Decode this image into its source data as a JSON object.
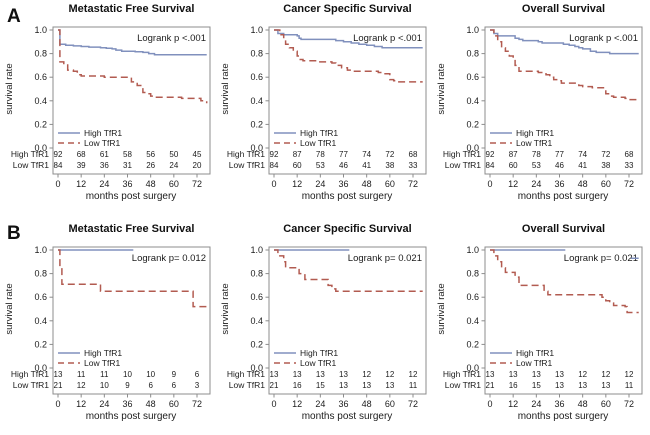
{
  "figure": {
    "row_labels": [
      "A",
      "B"
    ],
    "background": "#ffffff"
  },
  "style": {
    "high_color": "#8090bd",
    "low_color": "#b25b50",
    "frame_color": "#8c8c8c",
    "text_color": "#1c1c1c"
  },
  "chart_data": [
    {
      "type": "line",
      "subtype": "kaplan-meier-step",
      "title": "Metastatic Free Survival",
      "annotation": "Logrank p <.001",
      "xlabel": "months post surgery",
      "ylabel": "survival rate",
      "xlim": [
        0,
        78
      ],
      "ylim": [
        0.0,
        1.0
      ],
      "x_ticks": [
        0,
        12,
        24,
        36,
        48,
        60,
        72
      ],
      "y_ticks": [
        "1.0",
        "0.8",
        "0.6",
        "0.4",
        "0.2",
        "0.0"
      ],
      "grid": false,
      "legend_position": "bottom-left-inside",
      "series": [
        {
          "name": "High TfR1",
          "line": "solid",
          "color": "#8090bd",
          "points": [
            [
              0,
              1.0
            ],
            [
              1,
              0.88
            ],
            [
              4,
              0.87
            ],
            [
              8,
              0.865
            ],
            [
              12,
              0.86
            ],
            [
              16,
              0.855
            ],
            [
              22,
              0.85
            ],
            [
              25,
              0.845
            ],
            [
              28,
              0.84
            ],
            [
              30,
              0.83
            ],
            [
              33,
              0.82
            ],
            [
              40,
              0.815
            ],
            [
              44,
              0.81
            ],
            [
              47,
              0.8
            ],
            [
              50,
              0.79
            ],
            [
              77,
              0.79
            ]
          ]
        },
        {
          "name": "Low TfR1",
          "line": "dashed",
          "color": "#b25b50",
          "points": [
            [
              0,
              1.0
            ],
            [
              1,
              0.73
            ],
            [
              3,
              0.71
            ],
            [
              5,
              0.66
            ],
            [
              8,
              0.65
            ],
            [
              10,
              0.62
            ],
            [
              12,
              0.61
            ],
            [
              24,
              0.6
            ],
            [
              36,
              0.6
            ],
            [
              38,
              0.56
            ],
            [
              41,
              0.53
            ],
            [
              44,
              0.47
            ],
            [
              46,
              0.46
            ],
            [
              48,
              0.44
            ],
            [
              50,
              0.43
            ],
            [
              64,
              0.42
            ],
            [
              74,
              0.4
            ],
            [
              77,
              0.38
            ]
          ]
        }
      ],
      "at_risk": {
        "rows": [
          {
            "label": "High TfR1",
            "values": [
              92,
              68,
              61,
              58,
              56,
              50,
              45
            ]
          },
          {
            "label": "Low TfR1",
            "values": [
              84,
              39,
              36,
              31,
              26,
              24,
              20
            ]
          }
        ]
      }
    },
    {
      "type": "line",
      "subtype": "kaplan-meier-step",
      "title": "Cancer Specific Survival",
      "annotation": "Logrank p <.001",
      "xlabel": "months post surgery",
      "ylabel": "survival rate",
      "xlim": [
        0,
        78
      ],
      "ylim": [
        0.0,
        1.0
      ],
      "x_ticks": [
        0,
        12,
        24,
        36,
        48,
        60,
        72
      ],
      "y_ticks": [
        "1.0",
        "0.8",
        "0.6",
        "0.4",
        "0.2",
        "0.0"
      ],
      "grid": false,
      "legend_position": "bottom-left-inside",
      "series": [
        {
          "name": "High TfR1",
          "line": "solid",
          "color": "#8090bd",
          "points": [
            [
              0,
              1.0
            ],
            [
              2,
              0.97
            ],
            [
              5,
              0.96
            ],
            [
              12,
              0.95
            ],
            [
              13,
              0.93
            ],
            [
              14,
              0.92
            ],
            [
              30,
              0.92
            ],
            [
              32,
              0.91
            ],
            [
              36,
              0.9
            ],
            [
              40,
              0.89
            ],
            [
              44,
              0.88
            ],
            [
              48,
              0.87
            ],
            [
              52,
              0.86
            ],
            [
              56,
              0.85
            ],
            [
              77,
              0.85
            ]
          ]
        },
        {
          "name": "Low TfR1",
          "line": "dashed",
          "color": "#b25b50",
          "points": [
            [
              0,
              1.0
            ],
            [
              3,
              0.96
            ],
            [
              5,
              0.92
            ],
            [
              6,
              0.88
            ],
            [
              8,
              0.85
            ],
            [
              10,
              0.82
            ],
            [
              12,
              0.78
            ],
            [
              13,
              0.75
            ],
            [
              15,
              0.74
            ],
            [
              22,
              0.73
            ],
            [
              30,
              0.72
            ],
            [
              32,
              0.7
            ],
            [
              35,
              0.68
            ],
            [
              38,
              0.66
            ],
            [
              40,
              0.65
            ],
            [
              52,
              0.65
            ],
            [
              54,
              0.64
            ],
            [
              56,
              0.63
            ],
            [
              60,
              0.58
            ],
            [
              62,
              0.57
            ],
            [
              64,
              0.56
            ],
            [
              77,
              0.56
            ]
          ]
        }
      ],
      "at_risk": {
        "rows": [
          {
            "label": "High TfR1",
            "values": [
              92,
              87,
              78,
              77,
              74,
              72,
              68
            ]
          },
          {
            "label": "Low TfR1",
            "values": [
              84,
              60,
              53,
              46,
              41,
              38,
              33
            ]
          }
        ]
      }
    },
    {
      "type": "line",
      "subtype": "kaplan-meier-step",
      "title": "Overall Survival",
      "annotation": "Logrank p <.001",
      "xlabel": "months post surgery",
      "ylabel": "survival rate",
      "xlim": [
        0,
        78
      ],
      "ylim": [
        0.0,
        1.0
      ],
      "x_ticks": [
        0,
        12,
        24,
        36,
        48,
        60,
        72
      ],
      "y_ticks": [
        "1.0",
        "0.8",
        "0.6",
        "0.4",
        "0.2",
        "0.0"
      ],
      "grid": false,
      "legend_position": "bottom-left-inside",
      "series": [
        {
          "name": "High TfR1",
          "line": "solid",
          "color": "#8090bd",
          "points": [
            [
              0,
              1.0
            ],
            [
              2,
              0.97
            ],
            [
              4,
              0.95
            ],
            [
              12,
              0.95
            ],
            [
              13,
              0.93
            ],
            [
              15,
              0.92
            ],
            [
              17,
              0.91
            ],
            [
              25,
              0.9
            ],
            [
              27,
              0.89
            ],
            [
              36,
              0.89
            ],
            [
              38,
              0.88
            ],
            [
              41,
              0.87
            ],
            [
              44,
              0.86
            ],
            [
              46,
              0.85
            ],
            [
              48,
              0.84
            ],
            [
              52,
              0.82
            ],
            [
              55,
              0.81
            ],
            [
              62,
              0.8
            ],
            [
              77,
              0.8
            ]
          ]
        },
        {
          "name": "Low TfR1",
          "line": "dashed",
          "color": "#b25b50",
          "points": [
            [
              0,
              1.0
            ],
            [
              2,
              0.95
            ],
            [
              4,
              0.9
            ],
            [
              6,
              0.85
            ],
            [
              8,
              0.82
            ],
            [
              10,
              0.78
            ],
            [
              12,
              0.75
            ],
            [
              13,
              0.7
            ],
            [
              15,
              0.65
            ],
            [
              23,
              0.65
            ],
            [
              25,
              0.64
            ],
            [
              29,
              0.62
            ],
            [
              31,
              0.6
            ],
            [
              33,
              0.58
            ],
            [
              35,
              0.57
            ],
            [
              37,
              0.55
            ],
            [
              44,
              0.55
            ],
            [
              46,
              0.53
            ],
            [
              48,
              0.52
            ],
            [
              53,
              0.51
            ],
            [
              58,
              0.51
            ],
            [
              60,
              0.46
            ],
            [
              62,
              0.44
            ],
            [
              64,
              0.43
            ],
            [
              69,
              0.43
            ],
            [
              70,
              0.42
            ],
            [
              72,
              0.41
            ],
            [
              77,
              0.41
            ]
          ]
        }
      ],
      "at_risk": {
        "rows": [
          {
            "label": "High TfR1",
            "values": [
              92,
              87,
              78,
              77,
              74,
              72,
              68
            ]
          },
          {
            "label": "Low TfR1",
            "values": [
              84,
              60,
              53,
              46,
              41,
              38,
              33
            ]
          }
        ]
      }
    },
    {
      "type": "line",
      "subtype": "kaplan-meier-step",
      "title": "Metastatic Free Survival",
      "annotation": "Logrank p= 0.012",
      "xlabel": "months post surgery",
      "ylabel": "survival rate",
      "xlim": [
        0,
        78
      ],
      "ylim": [
        0.0,
        1.0
      ],
      "x_ticks": [
        0,
        12,
        24,
        36,
        48,
        60,
        72
      ],
      "y_ticks": [
        "1.0",
        "0.8",
        "0.6",
        "0.4",
        "0.2",
        "0.0"
      ],
      "grid": false,
      "legend_position": "bottom-left-inside",
      "series": [
        {
          "name": "High TfR1",
          "line": "solid",
          "color": "#8090bd",
          "points": [
            [
              0,
              1.0
            ],
            [
              39,
              1.0
            ]
          ]
        },
        {
          "name": "Low TfR1",
          "line": "dashed",
          "color": "#b25b50",
          "points": [
            [
              0,
              1.0
            ],
            [
              1,
              0.86
            ],
            [
              2,
              0.71
            ],
            [
              21,
              0.71
            ],
            [
              22,
              0.65
            ],
            [
              69,
              0.65
            ],
            [
              70,
              0.52
            ],
            [
              77,
              0.52
            ]
          ]
        }
      ],
      "at_risk": {
        "rows": [
          {
            "label": "High TfR1",
            "values": [
              13,
              11,
              11,
              10,
              10,
              9,
              6
            ]
          },
          {
            "label": "Low TfR1",
            "values": [
              21,
              12,
              10,
              9,
              6,
              6,
              3
            ]
          }
        ]
      }
    },
    {
      "type": "line",
      "subtype": "kaplan-meier-step",
      "title": "Cancer Specific Survival",
      "annotation": "Logrank p= 0.021",
      "xlabel": "months post surgery",
      "ylabel": "survival rate",
      "xlim": [
        0,
        78
      ],
      "ylim": [
        0.0,
        1.0
      ],
      "x_ticks": [
        0,
        12,
        24,
        36,
        48,
        60,
        72
      ],
      "y_ticks": [
        "1.0",
        "0.8",
        "0.6",
        "0.4",
        "0.2",
        "0.0"
      ],
      "grid": false,
      "legend_position": "bottom-left-inside",
      "series": [
        {
          "name": "High TfR1",
          "line": "solid",
          "color": "#8090bd",
          "points": [
            [
              0,
              1.0
            ],
            [
              39,
              1.0
            ]
          ]
        },
        {
          "name": "Low TfR1",
          "line": "dashed",
          "color": "#b25b50",
          "points": [
            [
              0,
              1.0
            ],
            [
              2,
              0.95
            ],
            [
              5,
              0.9
            ],
            [
              6,
              0.85
            ],
            [
              12,
              0.85
            ],
            [
              13,
              0.8
            ],
            [
              16,
              0.75
            ],
            [
              27,
              0.75
            ],
            [
              28,
              0.7
            ],
            [
              30,
              0.67
            ],
            [
              32,
              0.65
            ],
            [
              77,
              0.65
            ]
          ]
        }
      ],
      "at_risk": {
        "rows": [
          {
            "label": "High TfR1",
            "values": [
              13,
              13,
              13,
              13,
              12,
              12,
              12
            ]
          },
          {
            "label": "Low TfR1",
            "values": [
              21,
              16,
              15,
              13,
              13,
              13,
              11
            ]
          }
        ]
      }
    },
    {
      "type": "line",
      "subtype": "kaplan-meier-step",
      "title": "Overall Survival",
      "annotation": "Logrank p= 0.021",
      "xlabel": "months post surgery",
      "ylabel": "survival rate",
      "xlim": [
        0,
        78
      ],
      "ylim": [
        0.0,
        1.0
      ],
      "x_ticks": [
        0,
        12,
        24,
        36,
        48,
        60,
        72
      ],
      "y_ticks": [
        "1.0",
        "0.8",
        "0.6",
        "0.4",
        "0.2",
        "0.0"
      ],
      "grid": false,
      "legend_position": "bottom-left-inside",
      "series": [
        {
          "name": "High TfR1",
          "line": "solid",
          "color": "#8090bd",
          "points": [
            [
              0,
              1.0
            ],
            [
              39,
              1.0
            ]
          ]
        },
        {
          "name": "Low TfR1",
          "line": "dashed",
          "color": "#b25b50",
          "points": [
            [
              0,
              1.0
            ],
            [
              2,
              0.95
            ],
            [
              4,
              0.9
            ],
            [
              6,
              0.85
            ],
            [
              8,
              0.81
            ],
            [
              12,
              0.81
            ],
            [
              13,
              0.77
            ],
            [
              15,
              0.7
            ],
            [
              26,
              0.7
            ],
            [
              28,
              0.65
            ],
            [
              30,
              0.62
            ],
            [
              56,
              0.62
            ],
            [
              58,
              0.6
            ],
            [
              60,
              0.57
            ],
            [
              62,
              0.55
            ],
            [
              64,
              0.53
            ],
            [
              69,
              0.53
            ],
            [
              70,
              0.52
            ],
            [
              71,
              0.47
            ],
            [
              77,
              0.47
            ]
          ]
        }
      ],
      "marks": [
        {
          "series": "High TfR1",
          "x": 73,
          "x2": 77,
          "y": 0.93,
          "color": "#8090bd"
        }
      ],
      "at_risk": {
        "rows": [
          {
            "label": "High TfR1",
            "values": [
              13,
              13,
              13,
              13,
              12,
              12,
              12
            ]
          },
          {
            "label": "Low TfR1",
            "values": [
              21,
              16,
              15,
              13,
              13,
              13,
              11
            ]
          }
        ]
      }
    }
  ]
}
